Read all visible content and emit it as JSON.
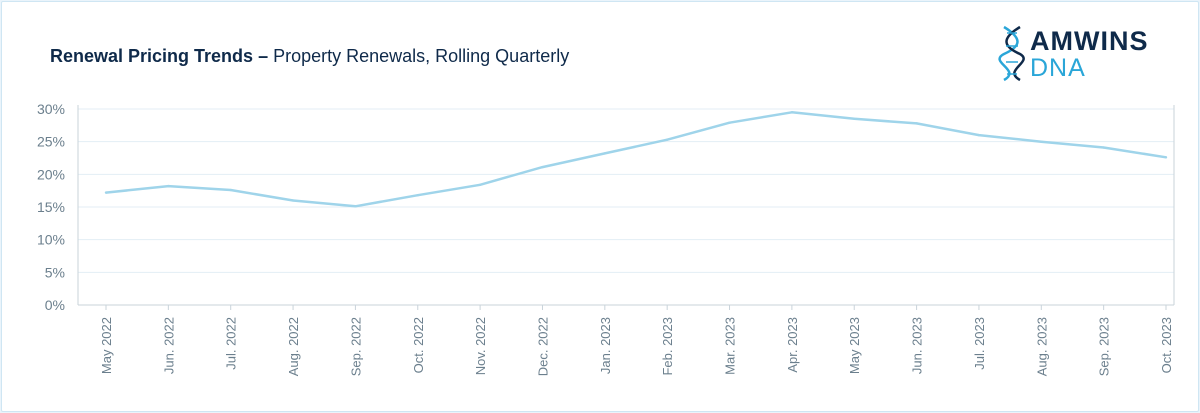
{
  "header": {
    "title_bold": "Renewal Pricing Trends –",
    "title_rest": " Property Renewals, Rolling Quarterly"
  },
  "logo": {
    "top": "AMWINS",
    "bottom": "DNA",
    "mark_icon": "dna-helix-icon"
  },
  "colors": {
    "line": "#9fd4ea",
    "navy": "#0f2a4a",
    "accent": "#2aa6d8",
    "grid": "#e3eef4",
    "axis": "#c9d3da"
  },
  "chart_data": {
    "type": "line",
    "title": "Renewal Pricing Trends – Property Renewals, Rolling Quarterly",
    "xlabel": "",
    "ylabel": "",
    "categories": [
      "May 2022",
      "Jun. 2022",
      "Jul. 2022",
      "Aug. 2022",
      "Sep. 2022",
      "Oct. 2022",
      "Nov. 2022",
      "Dec. 2022",
      "Jan. 2023",
      "Feb. 2023",
      "Mar. 2023",
      "Apr. 2023",
      "May 2023",
      "Jun. 2023",
      "Jul. 2023",
      "Aug. 2023",
      "Sep. 2023",
      "Oct. 2023"
    ],
    "series": [
      {
        "values": [
          17.2,
          18.2,
          17.6,
          16.0,
          15.1,
          16.8,
          18.4,
          21.1,
          23.2,
          25.3,
          27.9,
          29.5,
          28.5,
          27.8,
          26.0,
          25.0,
          24.1,
          22.6
        ]
      }
    ],
    "yticks": [
      "0%",
      "5%",
      "10%",
      "15%",
      "20%",
      "25%",
      "30%"
    ],
    "ylim": [
      0,
      30
    ],
    "grid": true,
    "legend": "none"
  }
}
